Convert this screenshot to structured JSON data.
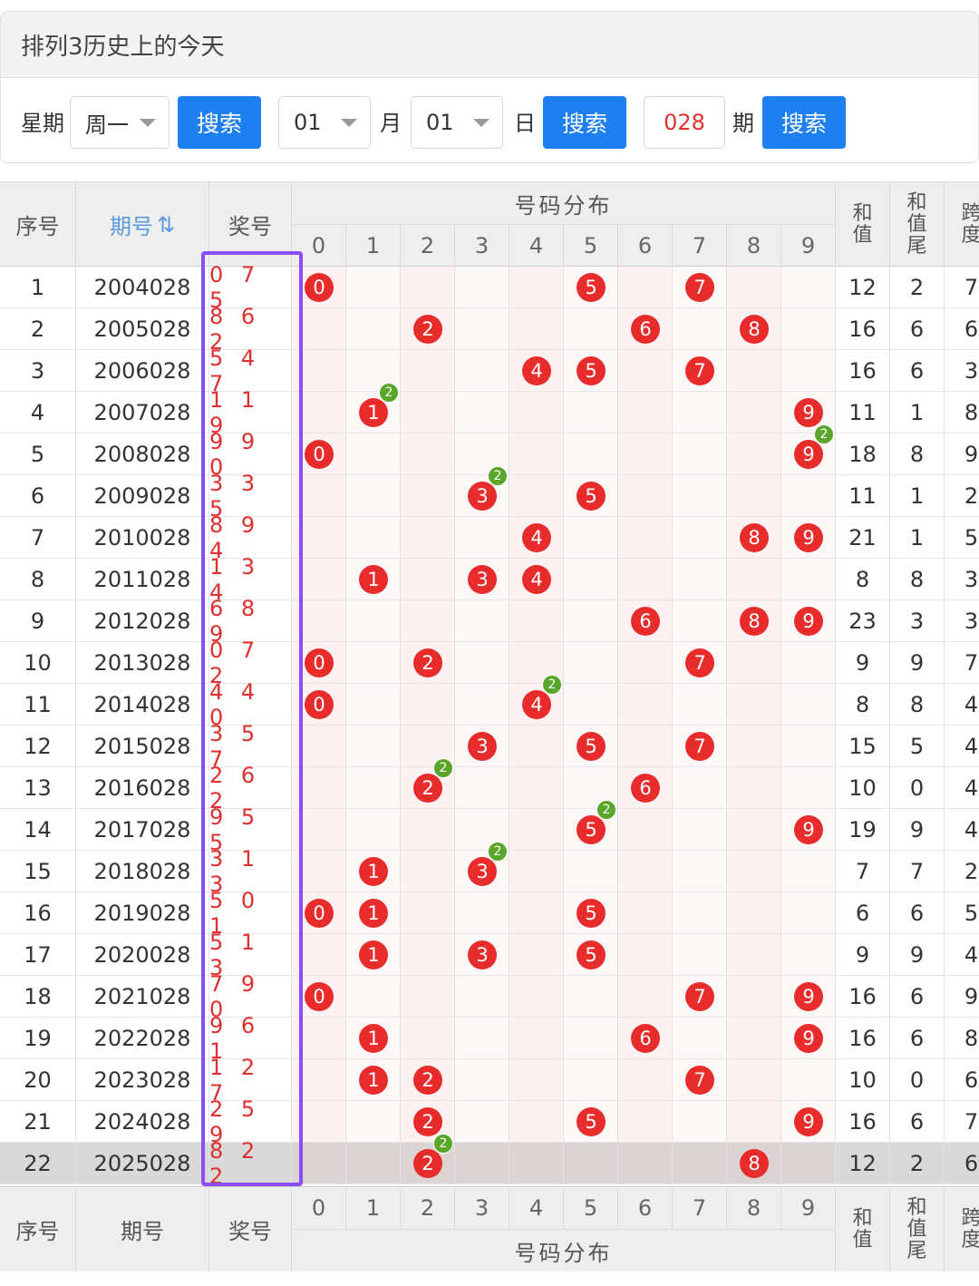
{
  "panel": {
    "title": "排列3历史上的今天",
    "weekday_label": "星期",
    "weekday_value": "周一",
    "search_label": "搜索",
    "month_value": "01",
    "month_label": "月",
    "day_value": "01",
    "day_label": "日",
    "issue_value": "028",
    "issue_label": "期"
  },
  "table": {
    "header": {
      "seq": "序号",
      "period": "期号",
      "sort_icon": "⇅",
      "prize": "奖号",
      "distribution": "号码分布",
      "sum_1": "和",
      "sum_2": "值",
      "tail_1": "和",
      "tail_2": "值",
      "tail_3": "尾",
      "span_1": "跨",
      "span_2": "度"
    },
    "digits": [
      "0",
      "1",
      "2",
      "3",
      "4",
      "5",
      "6",
      "7",
      "8",
      "9"
    ],
    "rows": [
      {
        "seq": "1",
        "period": "2004028",
        "prize": "0 7 5",
        "sum": "12",
        "tail": "2",
        "span": "7",
        "balls": [
          0,
          5,
          7
        ],
        "dup": null
      },
      {
        "seq": "2",
        "period": "2005028",
        "prize": "8 6 2",
        "sum": "16",
        "tail": "6",
        "span": "6",
        "balls": [
          2,
          6,
          8
        ],
        "dup": null
      },
      {
        "seq": "3",
        "period": "2006028",
        "prize": "5 4 7",
        "sum": "16",
        "tail": "6",
        "span": "3",
        "balls": [
          4,
          5,
          7
        ],
        "dup": null
      },
      {
        "seq": "4",
        "period": "2007028",
        "prize": "1 1 9",
        "sum": "11",
        "tail": "1",
        "span": "8",
        "balls": [
          1,
          9
        ],
        "dup": 1
      },
      {
        "seq": "5",
        "period": "2008028",
        "prize": "9 9 0",
        "sum": "18",
        "tail": "8",
        "span": "9",
        "balls": [
          0,
          9
        ],
        "dup": 9
      },
      {
        "seq": "6",
        "period": "2009028",
        "prize": "3 3 5",
        "sum": "11",
        "tail": "1",
        "span": "2",
        "balls": [
          3,
          5
        ],
        "dup": 3
      },
      {
        "seq": "7",
        "period": "2010028",
        "prize": "8 9 4",
        "sum": "21",
        "tail": "1",
        "span": "5",
        "balls": [
          4,
          8,
          9
        ],
        "dup": null
      },
      {
        "seq": "8",
        "period": "2011028",
        "prize": "1 3 4",
        "sum": "8",
        "tail": "8",
        "span": "3",
        "balls": [
          1,
          3,
          4
        ],
        "dup": null
      },
      {
        "seq": "9",
        "period": "2012028",
        "prize": "6 8 9",
        "sum": "23",
        "tail": "3",
        "span": "3",
        "balls": [
          6,
          8,
          9
        ],
        "dup": null
      },
      {
        "seq": "10",
        "period": "2013028",
        "prize": "0 7 2",
        "sum": "9",
        "tail": "9",
        "span": "7",
        "balls": [
          0,
          2,
          7
        ],
        "dup": null
      },
      {
        "seq": "11",
        "period": "2014028",
        "prize": "4 4 0",
        "sum": "8",
        "tail": "8",
        "span": "4",
        "balls": [
          0,
          4
        ],
        "dup": 4
      },
      {
        "seq": "12",
        "period": "2015028",
        "prize": "3 5 7",
        "sum": "15",
        "tail": "5",
        "span": "4",
        "balls": [
          3,
          5,
          7
        ],
        "dup": null
      },
      {
        "seq": "13",
        "period": "2016028",
        "prize": "2 6 2",
        "sum": "10",
        "tail": "0",
        "span": "4",
        "balls": [
          2,
          6
        ],
        "dup": 2
      },
      {
        "seq": "14",
        "period": "2017028",
        "prize": "9 5 5",
        "sum": "19",
        "tail": "9",
        "span": "4",
        "balls": [
          5,
          9
        ],
        "dup": 5
      },
      {
        "seq": "15",
        "period": "2018028",
        "prize": "3 1 3",
        "sum": "7",
        "tail": "7",
        "span": "2",
        "balls": [
          1,
          3
        ],
        "dup": 3
      },
      {
        "seq": "16",
        "period": "2019028",
        "prize": "5 0 1",
        "sum": "6",
        "tail": "6",
        "span": "5",
        "balls": [
          0,
          1,
          5
        ],
        "dup": null
      },
      {
        "seq": "17",
        "period": "2020028",
        "prize": "5 1 3",
        "sum": "9",
        "tail": "9",
        "span": "4",
        "balls": [
          1,
          3,
          5
        ],
        "dup": null
      },
      {
        "seq": "18",
        "period": "2021028",
        "prize": "7 9 0",
        "sum": "16",
        "tail": "6",
        "span": "9",
        "balls": [
          0,
          7,
          9
        ],
        "dup": null
      },
      {
        "seq": "19",
        "period": "2022028",
        "prize": "9 6 1",
        "sum": "16",
        "tail": "6",
        "span": "8",
        "balls": [
          1,
          6,
          9
        ],
        "dup": null
      },
      {
        "seq": "20",
        "period": "2023028",
        "prize": "1 2 7",
        "sum": "10",
        "tail": "0",
        "span": "6",
        "balls": [
          1,
          2,
          7
        ],
        "dup": null
      },
      {
        "seq": "21",
        "period": "2024028",
        "prize": "2 5 9",
        "sum": "16",
        "tail": "6",
        "span": "7",
        "balls": [
          2,
          5,
          9
        ],
        "dup": null
      },
      {
        "seq": "22",
        "period": "2025028",
        "prize": "8 2 2",
        "sum": "12",
        "tail": "2",
        "span": "6",
        "balls": [
          2,
          8
        ],
        "dup": 2
      }
    ],
    "footer": {
      "seq": "序号",
      "period": "期号",
      "prize": "奖号",
      "distribution": "号码分布"
    },
    "dup_badge": "2",
    "colors": {
      "ball": "#e82c2c",
      "badge": "#5aa62a",
      "accent": "#1e7ff0",
      "highlight": "#8b4df5"
    }
  }
}
